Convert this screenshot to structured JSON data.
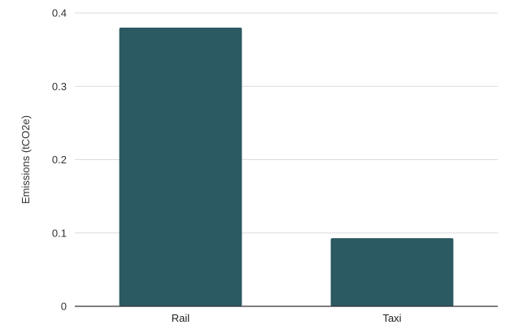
{
  "chart_data": {
    "type": "bar",
    "title": "",
    "xlabel": "",
    "ylabel": "Emissions (tCO2e)",
    "categories": [
      "Rail",
      "Taxi"
    ],
    "values": [
      0.38,
      0.093
    ],
    "ylim": [
      0,
      0.4
    ],
    "yticks": [
      0,
      0.1,
      0.2,
      0.3,
      0.4
    ],
    "ytick_labels": [
      "0",
      "0.1",
      "0.2",
      "0.3",
      "0.4"
    ],
    "bar_color": "#2b5a62",
    "grid": true,
    "legend": "none"
  }
}
